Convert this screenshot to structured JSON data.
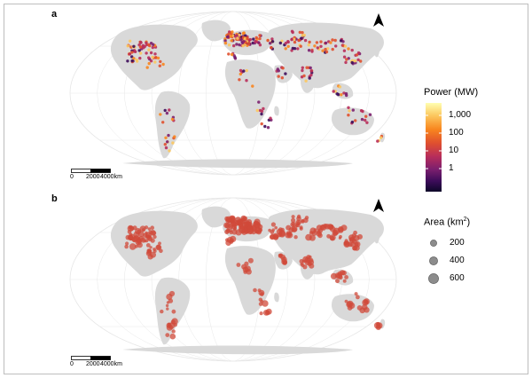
{
  "panels": [
    {
      "id": "a",
      "label": "a",
      "variable": "power"
    },
    {
      "id": "b",
      "label": "b",
      "variable": "area"
    }
  ],
  "scale_bar": {
    "labels": [
      "0",
      "2000",
      "4000km"
    ]
  },
  "legend_power": {
    "title": "Power (MW)",
    "ticks": [
      "1,000",
      "100",
      "10",
      "1"
    ],
    "colors": [
      "#ffffb2",
      "#fcc85f",
      "#f8851e",
      "#e0502e",
      "#b82e5a",
      "#7b1f6e",
      "#3d0c5a",
      "#0d0629"
    ]
  },
  "legend_area": {
    "title_main": "Area (km",
    "title_sup": "2",
    "title_end": ")",
    "items": [
      "200",
      "400",
      "600"
    ]
  },
  "colors": {
    "land": "#d9d9d9",
    "grid": "#e8e8e8",
    "point_b": "#d04a3a"
  }
}
